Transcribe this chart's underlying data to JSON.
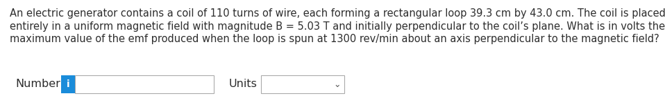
{
  "background_color": "#ffffff",
  "text_lines": [
    "An electric generator contains a coil of 110 turns of wire, each forming a rectangular loop 39.3 cm by 43.0 cm. The coil is placed",
    "entirely in a uniform magnetic field with magnitude B = 5.03 T and initially perpendicular to the coil’s plane. What is in volts the",
    "maximum value of the emf produced when the loop is spun at 1300 rev/min about an axis perpendicular to the magnetic field?"
  ],
  "text_color": "#2d2d2d",
  "text_fontsize": 10.5,
  "number_label": "Number",
  "number_label_fontsize": 11.5,
  "units_label": "Units",
  "units_label_fontsize": 11.5,
  "i_text": "i",
  "i_box_color": "#1a8cda",
  "i_text_color": "#ffffff",
  "i_text_fontsize": 10,
  "input_box_facecolor": "#ffffff",
  "input_box_edgecolor": "#aaaaaa",
  "dropdown_facecolor": "#ffffff",
  "dropdown_edgecolor": "#aaaaaa",
  "chevron_color": "#555555",
  "chevron_fontsize": 9
}
